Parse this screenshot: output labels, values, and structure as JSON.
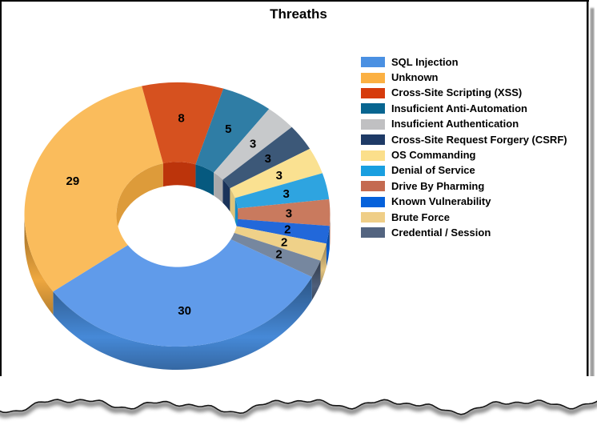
{
  "title": "Threaths",
  "chart_data": {
    "type": "pie",
    "subtype": "3d-donut",
    "title": "Threaths",
    "total": 93,
    "direction": "clockwise",
    "start_angle_deg": 118.2,
    "donut_hole_ratio": 0.398,
    "show_values": true,
    "legend_position": "right",
    "slices": [
      {
        "label": "SQL Injection",
        "value": 30,
        "color": "#4A90E2",
        "top_color": "#609BEA"
      },
      {
        "label": "Unknown",
        "value": 29,
        "color": "#FBB042",
        "top_color": "#FABC5C"
      },
      {
        "label": "Cross-Site Scripting (XSS)",
        "value": 8,
        "color": "#D63B0C",
        "top_color": "#D6511F"
      },
      {
        "label": "Insuficient Anti-Automation",
        "value": 5,
        "color": "#076590",
        "top_color": "#2F7DA5"
      },
      {
        "label": "Insuficient Authentication",
        "value": 3,
        "color": "#C0C0C2",
        "top_color": "#C7C9CB"
      },
      {
        "label": "Cross-Site Request Forgery (CSRF)",
        "value": 3,
        "color": "#1E3A66",
        "top_color": "#3C5878"
      },
      {
        "label": "OS Commanding",
        "value": 3,
        "color": "#FBDF8B",
        "top_color": "#FAE191"
      },
      {
        "label": "Denial of Service",
        "value": 3,
        "color": "#199FE0",
        "top_color": "#2EA4E0"
      },
      {
        "label": "Drive By Pharming",
        "value": 3,
        "color": "#C46A50",
        "top_color": "#C97A5E"
      },
      {
        "label": "Known Vulnerability",
        "value": 2,
        "color": "#0561DB",
        "top_color": "#2268DA"
      },
      {
        "label": "Brute Force",
        "value": 2,
        "color": "#EFCE87",
        "top_color": "#EFD189"
      },
      {
        "label": "Credential / Session",
        "value": 2,
        "color": "#536480",
        "top_color": "#76879F"
      }
    ]
  },
  "decor": {
    "border_color": "#000000",
    "shadow_color": "#9a9a9a",
    "label_color": "#000000"
  }
}
